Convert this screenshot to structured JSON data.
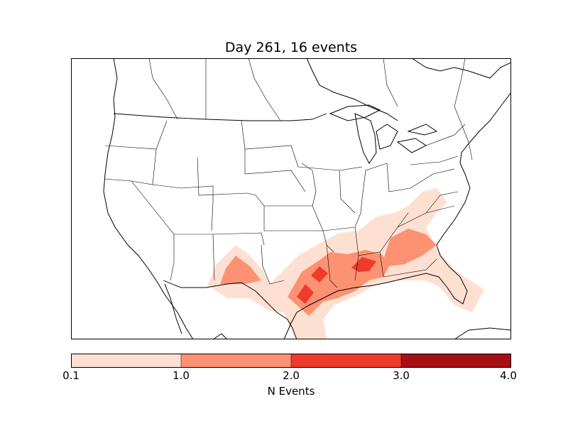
{
  "title": "Day 261, 16 events",
  "colorbar": {
    "label": "N Events",
    "ticks": [
      "0.1",
      "1.0",
      "2.0",
      "3.0",
      "4.0"
    ],
    "bins": [
      {
        "from": 0.1,
        "to": 1.0,
        "color": "#fee0d2"
      },
      {
        "from": 1.0,
        "to": 2.0,
        "color": "#fc9272"
      },
      {
        "from": 2.0,
        "to": 3.0,
        "color": "#ef3b2c"
      },
      {
        "from": 3.0,
        "to": 4.0,
        "color": "#a50f15"
      }
    ]
  },
  "map": {
    "region": "United States (Lambert conformal)",
    "boundaries": [
      "coastlines",
      "country borders",
      "state borders"
    ],
    "event_density_levels": [
      {
        "level": 0.1,
        "color": "#fee0d2"
      },
      {
        "level": 1.0,
        "color": "#fc9272"
      },
      {
        "level": 2.0,
        "color": "#ef3b2c"
      }
    ]
  }
}
